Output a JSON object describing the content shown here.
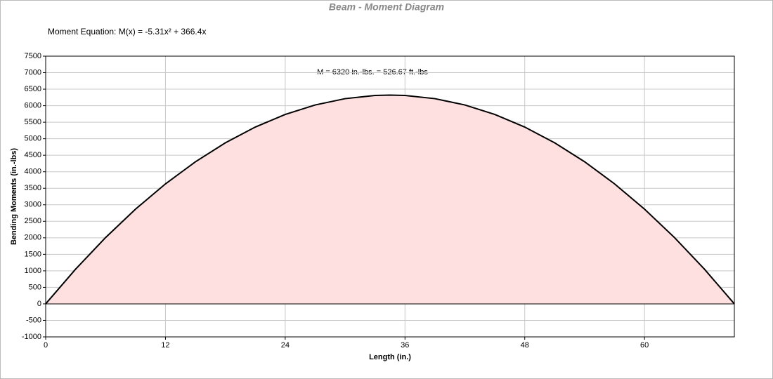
{
  "chart_data": {
    "type": "area",
    "title": "Beam - Moment Diagram",
    "annotations": [
      "Moment Equation:  M(x) = -5.31x² + 366.4x",
      "M = 6320 in.-lbs. = 526.67 ft.-lbs"
    ],
    "x_label": "Length (in.)",
    "y_label": "Bending Moments (in.-lbs)",
    "x": [
      0,
      3,
      6,
      9,
      12,
      15,
      18,
      21,
      24,
      27,
      30,
      33,
      34.5,
      36,
      39,
      42,
      45,
      48,
      51,
      54,
      57,
      60,
      63,
      66,
      69
    ],
    "series": [
      {
        "name": "Moment",
        "color": "#000000",
        "fill": "#ffe0e0",
        "values": [
          0,
          1051,
          2007,
          2868,
          3632,
          4301,
          4875,
          5353,
          5735,
          6022,
          6213,
          6309,
          6320,
          6309,
          6213,
          6022,
          5735,
          5353,
          4875,
          4302,
          3633,
          2868,
          2008,
          1052,
          0
        ]
      }
    ],
    "xlim": [
      0,
      69
    ],
    "xticks": [
      0,
      12,
      24,
      36,
      48,
      60
    ],
    "ylim": [
      -1000,
      7500
    ],
    "yticks": [
      -1000,
      -500,
      0,
      500,
      1000,
      1500,
      2000,
      2500,
      3000,
      3500,
      4000,
      4500,
      5000,
      5500,
      6000,
      6500,
      7000,
      7500
    ],
    "grid": true
  }
}
